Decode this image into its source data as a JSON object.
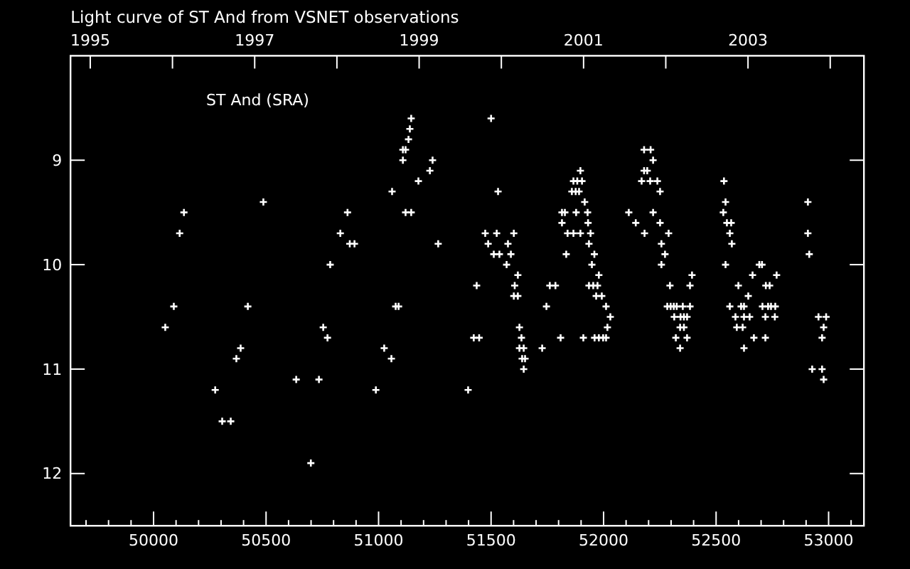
{
  "chart_data": {
    "type": "scatter",
    "title": "Light curve of ST And from VSNET observations",
    "annotations": [
      "ST And (SRA)"
    ],
    "xlim": [
      49631,
      53157
    ],
    "ylim": [
      12.5,
      8.0
    ],
    "xticks": [
      {
        "value": 49700,
        "label": null
      },
      {
        "value": 49800,
        "label": null
      },
      {
        "value": 49900,
        "label": null
      },
      50000,
      {
        "value": 50100,
        "label": null
      },
      {
        "value": 50200,
        "label": null
      },
      {
        "value": 50300,
        "label": null
      },
      {
        "value": 50400,
        "label": null
      },
      50500,
      {
        "value": 50600,
        "label": null
      },
      {
        "value": 50700,
        "label": null
      },
      {
        "value": 50800,
        "label": null
      },
      {
        "value": 50900,
        "label": null
      },
      51000,
      {
        "value": 51100,
        "label": null
      },
      {
        "value": 51200,
        "label": null
      },
      {
        "value": 51300,
        "label": null
      },
      {
        "value": 51400,
        "label": null
      },
      51500,
      {
        "value": 51600,
        "label": null
      },
      {
        "value": 51700,
        "label": null
      },
      {
        "value": 51800,
        "label": null
      },
      {
        "value": 51900,
        "label": null
      },
      52000,
      {
        "value": 52100,
        "label": null
      },
      {
        "value": 52200,
        "label": null
      },
      {
        "value": 52300,
        "label": null
      },
      {
        "value": 52400,
        "label": null
      },
      52500,
      {
        "value": 52600,
        "label": null
      },
      {
        "value": 52700,
        "label": null
      },
      {
        "value": 52800,
        "label": null
      },
      {
        "value": 52900,
        "label": null
      },
      53000,
      {
        "value": 53100,
        "label": null
      }
    ],
    "yticks": [
      9,
      10,
      11,
      12
    ],
    "x2lim": [
      1994.76,
      2004.41
    ],
    "x2ticks": [
      1995,
      {
        "value": 1996,
        "label": null
      },
      1997,
      {
        "value": 1998,
        "label": null
      },
      1999,
      {
        "value": 2000,
        "label": null
      },
      2001,
      {
        "value": 2002,
        "label": null
      },
      2003,
      {
        "value": 2004,
        "label": null
      }
    ],
    "marker": "cross",
    "series": [
      {
        "color": "#ffffff",
        "x": [
          50052,
          50090,
          50116,
          50135,
          50274,
          50305,
          50343,
          50368,
          50387,
          50419,
          50488,
          50634,
          50699,
          50735,
          50754,
          50773,
          50785,
          50830,
          50862,
          50872,
          50893,
          50988,
          51025,
          51057,
          51060,
          51076,
          51089,
          51120,
          51145,
          51108,
          51120,
          51108,
          51133,
          51139,
          51145,
          51177,
          51228,
          51240,
          51265,
          51398,
          51423,
          51447,
          51436,
          51474,
          51487,
          51500,
          51512,
          51537,
          51525,
          51531,
          51569,
          51575,
          51588,
          51601,
          51601,
          51605,
          51619,
          51619,
          51626,
          51626,
          51635,
          51638,
          51645,
          51651,
          51645,
          51727,
          51746,
          51761,
          51786,
          51809,
          51815,
          51828,
          51815,
          51834,
          51840,
          51859,
          51876,
          51891,
          51866,
          51883,
          51904,
          51866,
          51878,
          51897,
          51897,
          51910,
          51916,
          51929,
          51931,
          51935,
          51942,
          51948,
          51959,
          51935,
          51954,
          51973,
          51960,
          51979,
          51998,
          52011,
          51967,
          51992,
          51979,
          52011,
          52017,
          52030,
          52112,
          52143,
          52169,
          52180,
          52209,
          52180,
          52194,
          52182,
          52207,
          52220,
          52220,
          52239,
          52251,
          52251,
          52257,
          52257,
          52273,
          52289,
          52295,
          52283,
          52298,
          52312,
          52325,
          52352,
          52314,
          52342,
          52357,
          52371,
          52321,
          52340,
          52357,
          52340,
          52371,
          52384,
          52384,
          52393,
          52532,
          52535,
          52542,
          52542,
          52548,
          52567,
          52561,
          52570,
          52561,
          52586,
          52592,
          52618,
          52599,
          52611,
          52624,
          52624,
          52649,
          52624,
          52643,
          52662,
          52668,
          52692,
          52704,
          52706,
          52731,
          52744,
          52763,
          52719,
          52761,
          52719,
          52721,
          52738,
          52769,
          52908,
          52908,
          52914,
          52927,
          52971,
          52955,
          52989,
          52978,
          52971,
          52978
        ],
        "values": [
          10.6,
          10.4,
          9.7,
          9.5,
          11.2,
          11.5,
          11.5,
          10.9,
          10.8,
          10.4,
          9.4,
          11.1,
          11.9,
          11.1,
          10.6,
          10.7,
          10.0,
          9.7,
          9.5,
          9.8,
          9.8,
          11.2,
          10.8,
          10.9,
          9.3,
          10.4,
          10.4,
          9.5,
          9.5,
          8.9,
          8.9,
          9.0,
          8.8,
          8.7,
          8.6,
          9.2,
          9.1,
          9.0,
          9.8,
          11.2,
          10.7,
          10.7,
          10.2,
          9.7,
          9.8,
          8.6,
          9.9,
          9.9,
          9.7,
          9.3,
          10.0,
          9.8,
          9.9,
          9.7,
          10.3,
          10.2,
          10.3,
          10.1,
          10.6,
          10.8,
          10.7,
          10.9,
          10.8,
          10.9,
          11.0,
          10.8,
          10.4,
          10.2,
          10.2,
          10.7,
          9.5,
          9.5,
          9.6,
          9.9,
          9.7,
          9.3,
          9.3,
          9.3,
          9.2,
          9.2,
          9.2,
          9.7,
          9.5,
          9.1,
          9.7,
          10.7,
          9.4,
          9.5,
          9.6,
          9.8,
          9.7,
          10.0,
          9.9,
          10.2,
          10.2,
          10.2,
          10.7,
          10.7,
          10.7,
          10.7,
          10.3,
          10.3,
          10.1,
          10.4,
          10.6,
          10.5,
          9.5,
          9.6,
          9.2,
          8.9,
          8.9,
          9.1,
          9.1,
          9.7,
          9.2,
          9.0,
          9.5,
          9.2,
          9.3,
          9.6,
          9.8,
          10.0,
          9.9,
          9.7,
          10.2,
          10.4,
          10.4,
          10.4,
          10.4,
          10.4,
          10.5,
          10.5,
          10.5,
          10.5,
          10.7,
          10.6,
          10.6,
          10.8,
          10.7,
          10.2,
          10.4,
          10.1,
          9.5,
          9.2,
          9.4,
          10.0,
          9.6,
          9.6,
          9.7,
          9.8,
          10.4,
          10.5,
          10.6,
          10.6,
          10.2,
          10.4,
          10.4,
          10.5,
          10.5,
          10.8,
          10.3,
          10.1,
          10.7,
          10.0,
          10.0,
          10.4,
          10.4,
          10.4,
          10.4,
          10.5,
          10.5,
          10.7,
          10.2,
          10.2,
          10.1,
          9.4,
          9.7,
          9.9,
          11.0,
          11.0,
          10.5,
          10.5,
          10.6,
          10.7,
          11.1
        ]
      }
    ]
  }
}
